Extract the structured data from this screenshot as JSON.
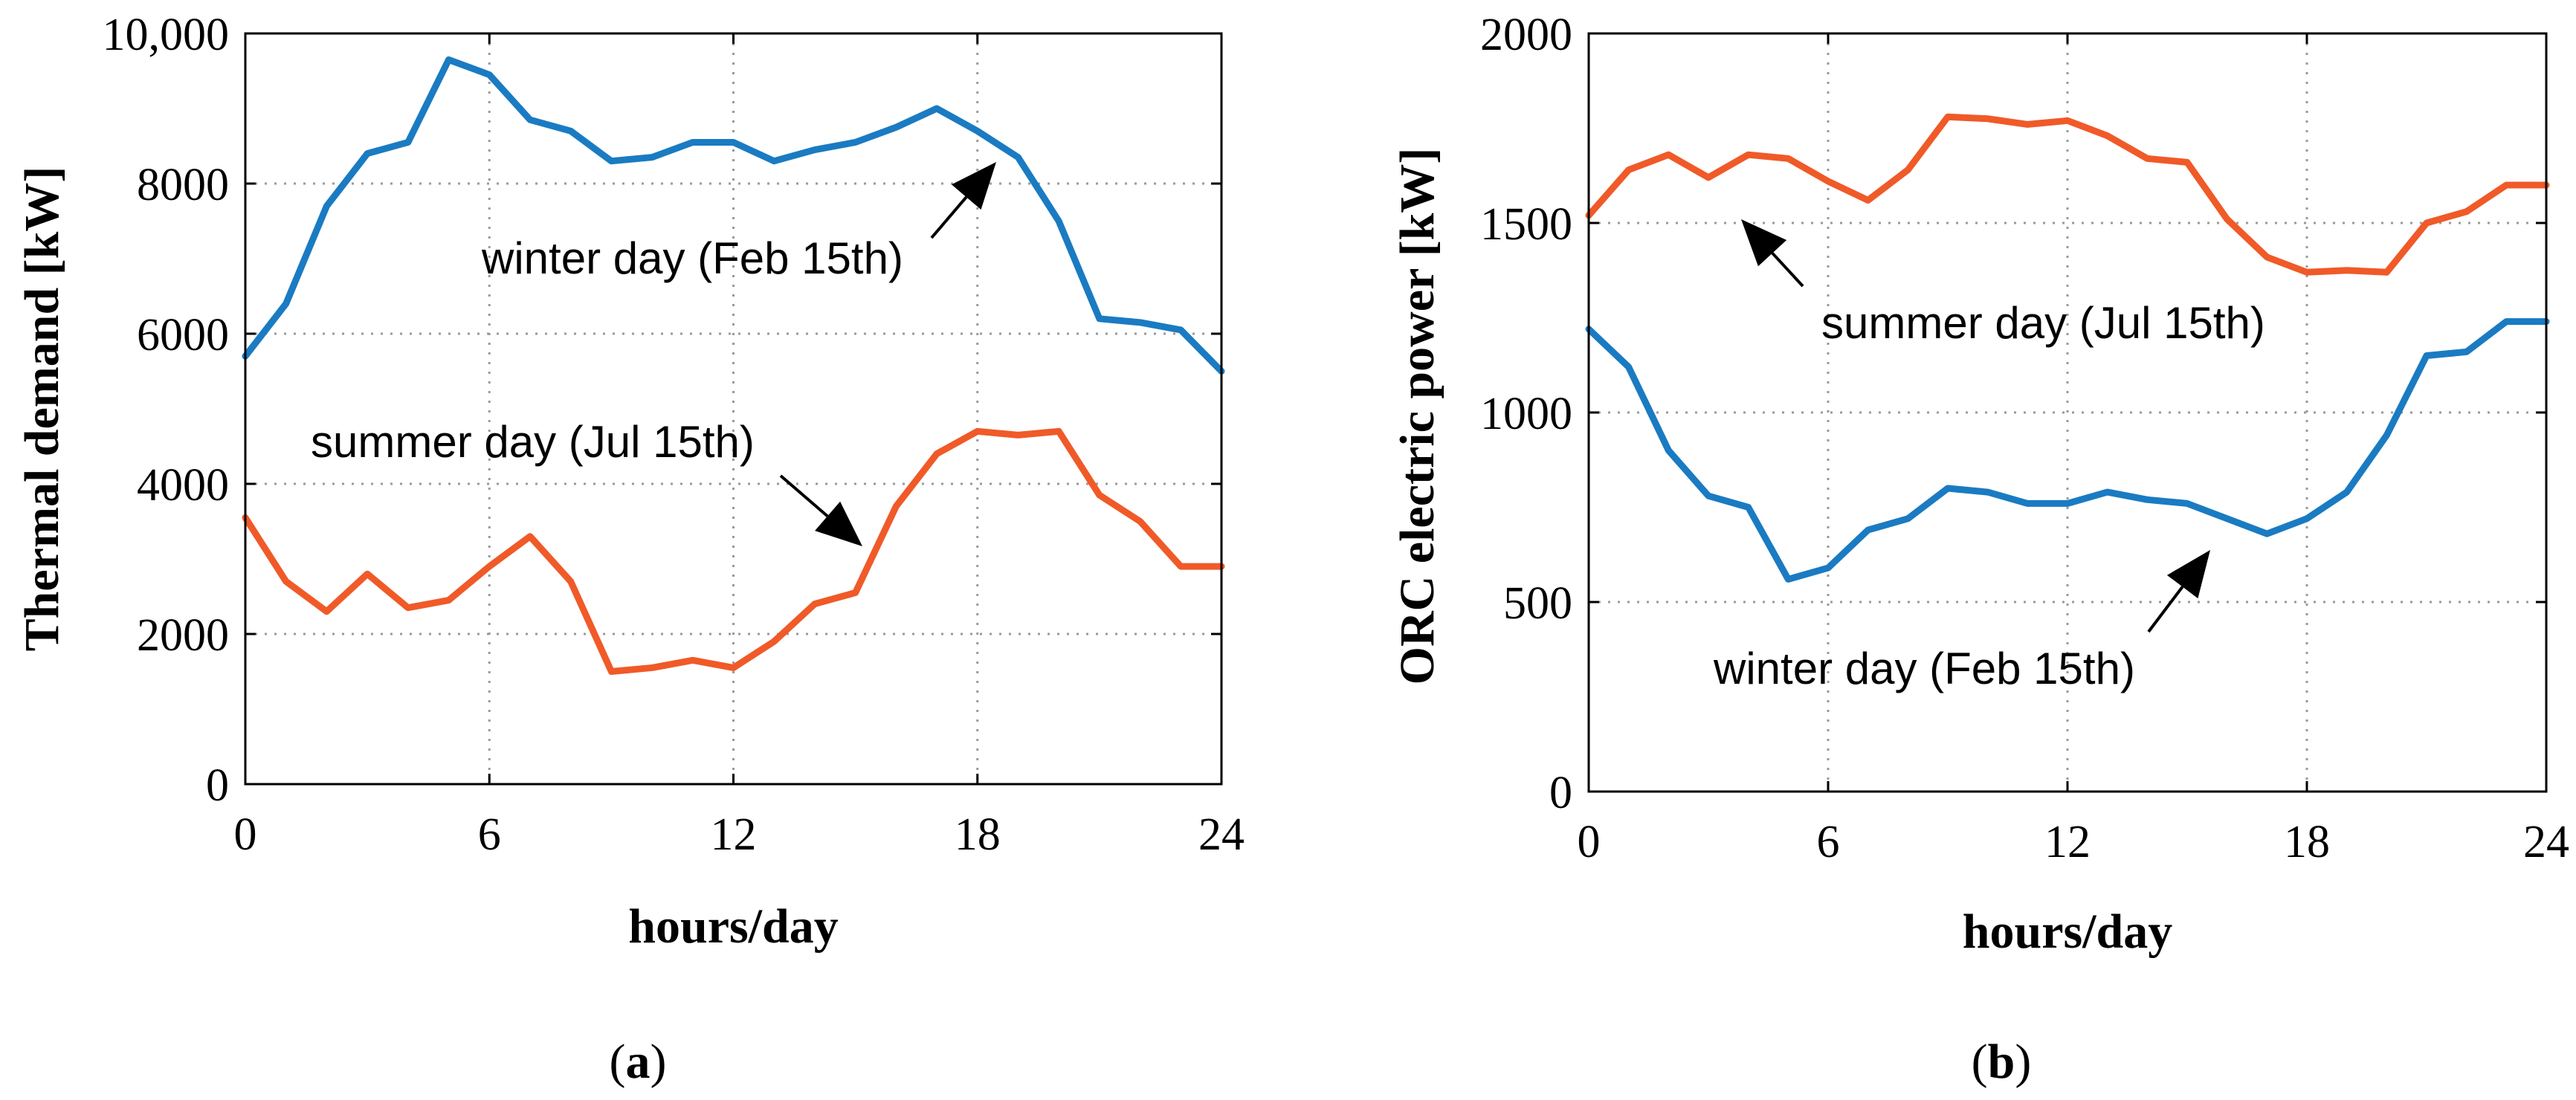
{
  "chart_data": [
    {
      "id": "a",
      "type": "line",
      "caption_letter": "a",
      "ylabel": "Thermal demand [kW]",
      "xlabel": "hours/day",
      "xlim": [
        0,
        24
      ],
      "ylim": [
        0,
        10000
      ],
      "x_ticks": [
        0,
        6,
        12,
        18,
        24
      ],
      "x_tick_labels": [
        "0",
        "6",
        "12",
        "18",
        "24"
      ],
      "y_ticks": [
        0,
        2000,
        4000,
        6000,
        8000,
        10000
      ],
      "y_tick_labels": [
        "0",
        "2000",
        "4000",
        "6000",
        "8000",
        "10,000"
      ],
      "grid": true,
      "x": [
        0,
        1,
        2,
        3,
        4,
        5,
        6,
        7,
        8,
        9,
        10,
        11,
        12,
        13,
        14,
        15,
        16,
        17,
        18,
        19,
        20,
        21,
        22,
        23,
        24
      ],
      "series": [
        {
          "name": "winter day (Feb 15th)",
          "color": "#1a7bc2",
          "values": [
            5700,
            6400,
            7700,
            8400,
            8550,
            9650,
            9450,
            8850,
            8700,
            8300,
            8350,
            8550,
            8550,
            8300,
            8450,
            8550,
            8750,
            9000,
            8700,
            8350,
            7500,
            6200,
            6150,
            6050,
            5500
          ]
        },
        {
          "name": "summer day (Jul 15th)",
          "color": "#f05a28",
          "values": [
            3550,
            2700,
            2300,
            2800,
            2350,
            2450,
            2900,
            3300,
            2700,
            1500,
            1550,
            1650,
            1550,
            1900,
            2400,
            2550,
            3700,
            4400,
            4700,
            4650,
            4700,
            3850,
            3500,
            2900,
            2900
          ]
        }
      ],
      "annotations": [
        {
          "text": "winter day (Feb 15th)",
          "series": 0,
          "point_x": 19,
          "point_y": 8700
        },
        {
          "text": "summer day (Jul 15th)",
          "series": 1,
          "point_x": 15.3,
          "point_y": 3150
        }
      ]
    },
    {
      "id": "b",
      "type": "line",
      "caption_letter": "b",
      "ylabel": "ORC electric power [kW]",
      "xlabel": "hours/day",
      "xlim": [
        0,
        24
      ],
      "ylim": [
        0,
        2000
      ],
      "x_ticks": [
        0,
        6,
        12,
        18,
        24
      ],
      "x_tick_labels": [
        "0",
        "6",
        "12",
        "18",
        "24"
      ],
      "y_ticks": [
        0,
        500,
        1000,
        1500,
        2000
      ],
      "y_tick_labels": [
        "0",
        "500",
        "1000",
        "1500",
        "2000"
      ],
      "grid": true,
      "x": [
        0,
        1,
        2,
        3,
        4,
        5,
        6,
        7,
        8,
        9,
        10,
        11,
        12,
        13,
        14,
        15,
        16,
        17,
        18,
        19,
        20,
        21,
        22,
        23,
        24
      ],
      "series": [
        {
          "name": "summer day (Jul 15th)",
          "color": "#f05a28",
          "values": [
            1520,
            1640,
            1680,
            1620,
            1680,
            1670,
            1610,
            1560,
            1640,
            1780,
            1775,
            1760,
            1770,
            1730,
            1670,
            1660,
            1510,
            1410,
            1370,
            1375,
            1370,
            1500,
            1530,
            1600,
            1600
          ]
        },
        {
          "name": "winter day (Feb 15th)",
          "color": "#1a7bc2",
          "values": [
            1220,
            1120,
            900,
            780,
            750,
            560,
            590,
            690,
            720,
            800,
            790,
            760,
            760,
            790,
            770,
            760,
            720,
            680,
            720,
            790,
            940,
            1150,
            1160,
            1240,
            1240
          ]
        }
      ],
      "annotations": [
        {
          "text": "summer day (Jul 15th)",
          "series": 0,
          "point_x": 3.8,
          "point_y": 1600
        },
        {
          "text": "winter day (Feb 15th)",
          "series": 1,
          "point_x": 15.6,
          "point_y": 680
        }
      ]
    }
  ]
}
